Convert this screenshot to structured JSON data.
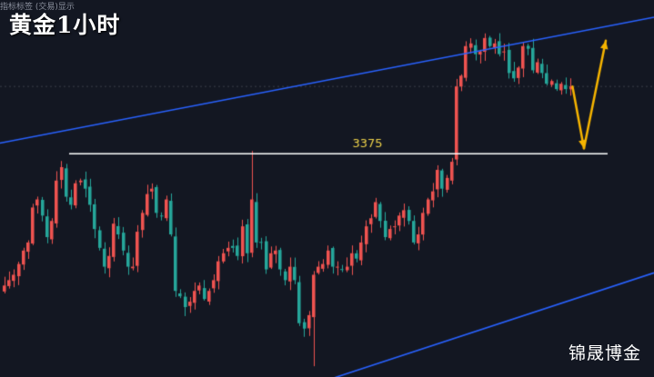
{
  "title": "黄金1小时",
  "indicator_note": "指标标签 (交易)显示",
  "watermark": "锦晟博金",
  "colors": {
    "background": "#131722",
    "bullish": "#ef5350",
    "bearish": "#26a69a",
    "channel": "#2962ff",
    "level": "#ffffff",
    "level_label": "#f0d44a",
    "arrow": "#f7b500",
    "reference_line": "#3a3f4b"
  },
  "chart_data": {
    "type": "candlestick",
    "timeframe": "1H",
    "grid": false,
    "price_range": [
      3292,
      3422
    ],
    "candle_count": 120,
    "horizontal_level": {
      "value": 3375,
      "label": "3375"
    },
    "channel": {
      "upper": {
        "start": {
          "bar": 0,
          "price": 3379
        },
        "end": {
          "bar": 119,
          "price": 3420
        }
      },
      "lower": {
        "start": {
          "bar": 0,
          "price": 3251
        },
        "end": {
          "bar": 119,
          "price": 3321
        }
      }
    },
    "closes": [
      3326,
      3328,
      3330,
      3334,
      3339,
      3342,
      3355,
      3358,
      3352,
      3344,
      3350,
      3365,
      3370,
      3359,
      3356,
      3364,
      3365,
      3362,
      3356,
      3347,
      3340,
      3333,
      3337,
      3349,
      3345,
      3339,
      3333,
      3333,
      3346,
      3353,
      3360,
      3362,
      3353,
      3352,
      3358,
      3345,
      3324,
      3322,
      3318,
      3320,
      3324,
      3326,
      3321,
      3324,
      3328,
      3335,
      3338,
      3340,
      3340,
      3337,
      3348,
      3338,
      3358,
      3342,
      3342,
      3332,
      3338,
      3339,
      3332,
      3328,
      3333,
      3328,
      3312,
      3310,
      3315,
      3330,
      3333,
      3334,
      3339,
      3333,
      3333,
      3332,
      3333,
      3338,
      3336,
      3342,
      3348,
      3351,
      3357,
      3350,
      3344,
      3347,
      3348,
      3352,
      3354,
      3350,
      3342,
      3345,
      3353,
      3358,
      3361,
      3369,
      3362,
      3366,
      3372,
      3400,
      3404,
      3415,
      3416,
      3412,
      3413,
      3418,
      3415,
      3416,
      3412,
      3413,
      3405,
      3403,
      3407,
      3415,
      3414,
      3406,
      3409,
      3405,
      3401,
      3402,
      3399,
      3401,
      3399,
      3400
    ],
    "projection": {
      "down_to": 3377,
      "up_to": 3417
    }
  }
}
